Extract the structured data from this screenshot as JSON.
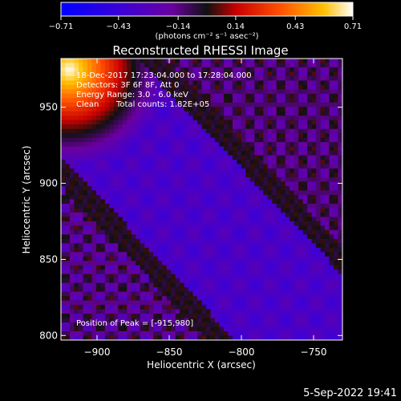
{
  "chart_data": {
    "type": "heatmap",
    "title": "Reconstructed RHESSI Image",
    "xlabel": "Heliocentric X (arcsec)",
    "ylabel": "Heliocentric Y (arcsec)",
    "xlim": [
      -925,
      -730
    ],
    "ylim": [
      797,
      982
    ],
    "x_ticks": [
      -900,
      -850,
      -800,
      -750
    ],
    "x_tick_labels": [
      "−900",
      "−850",
      "−800",
      "−750"
    ],
    "y_ticks": [
      800,
      850,
      900,
      950
    ],
    "y_tick_labels": [
      "800",
      "850",
      "900",
      "950"
    ],
    "colorbar": {
      "range": [
        -0.71,
        0.71
      ],
      "ticks": [
        -0.71,
        -0.43,
        -0.14,
        0.14,
        0.43,
        0.71
      ],
      "tick_labels": [
        "−0.71",
        "−0.43",
        "−0.14",
        "0.14",
        "0.43",
        "0.71"
      ],
      "unit_label": "(photons cm⁻² s⁻¹ asec⁻²)"
    },
    "annotations": [
      "18-Dec-2017 17:23:04.000 to 17:28:04.000",
      "Detectors: 3F 6F 8F, Att 0",
      "Energy Range: 3.0 - 6.0 keV",
      "Clean",
      "Total counts: 1.82E+05"
    ],
    "peak_label": "Position of Peak = [-915,980]",
    "peak": [
      -915,
      980
    ]
  },
  "footer": {
    "timestamp": "5-Sep-2022 19:41"
  }
}
